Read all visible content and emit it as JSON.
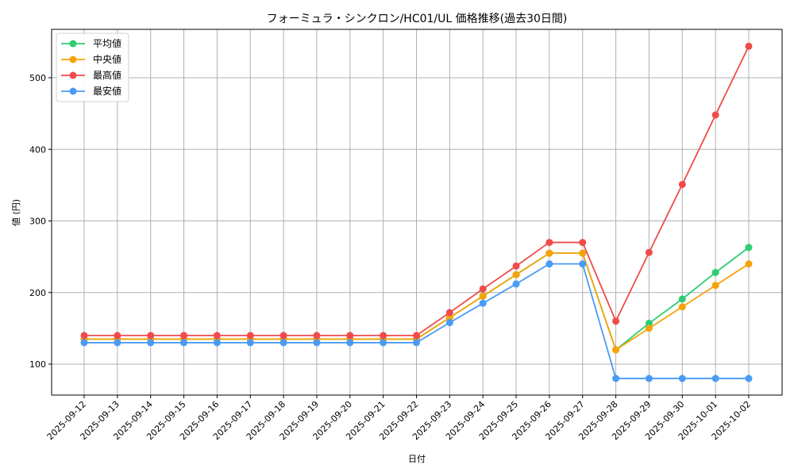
{
  "chart_data": {
    "type": "line",
    "title": "フォーミュラ・シンクロン/HC01/UL 価格推移(過去30日間)",
    "xlabel": "日付",
    "ylabel": "値 (円)",
    "ylim": [
      55,
      567
    ],
    "yticks": [
      100,
      200,
      300,
      400,
      500
    ],
    "grid": true,
    "legend_position": "upper left",
    "categories": [
      "2025-09-12",
      "2025-09-13",
      "2025-09-14",
      "2025-09-15",
      "2025-09-16",
      "2025-09-17",
      "2025-09-18",
      "2025-09-19",
      "2025-09-20",
      "2025-09-21",
      "2025-09-22",
      "2025-09-23",
      "2025-09-24",
      "2025-09-25",
      "2025-09-26",
      "2025-09-27",
      "2025-09-28",
      "2025-09-29",
      "2025-09-30",
      "2025-10-01",
      "2025-10-02"
    ],
    "series": [
      {
        "name": "平均値",
        "color": "#2ecc71",
        "values": [
          135,
          135,
          135,
          135,
          135,
          135,
          135,
          135,
          135,
          135,
          135,
          165,
          195,
          225,
          255,
          255,
          120,
          157,
          191,
          228,
          263
        ]
      },
      {
        "name": "中央値",
        "color": "#f5a30a",
        "values": [
          135,
          135,
          135,
          135,
          135,
          135,
          135,
          135,
          135,
          135,
          135,
          165,
          195,
          225,
          255,
          255,
          120,
          150,
          180,
          210,
          240
        ]
      },
      {
        "name": "最高値",
        "color": "#f04b4b",
        "values": [
          140,
          140,
          140,
          140,
          140,
          140,
          140,
          140,
          140,
          140,
          140,
          172,
          205,
          237,
          270,
          270,
          160,
          256,
          351,
          448,
          544
        ]
      },
      {
        "name": "最安値",
        "color": "#4a9bf5",
        "values": [
          130,
          130,
          130,
          130,
          130,
          130,
          130,
          130,
          130,
          130,
          130,
          158,
          185,
          212,
          240,
          240,
          80,
          80,
          80,
          80,
          80
        ]
      }
    ]
  }
}
